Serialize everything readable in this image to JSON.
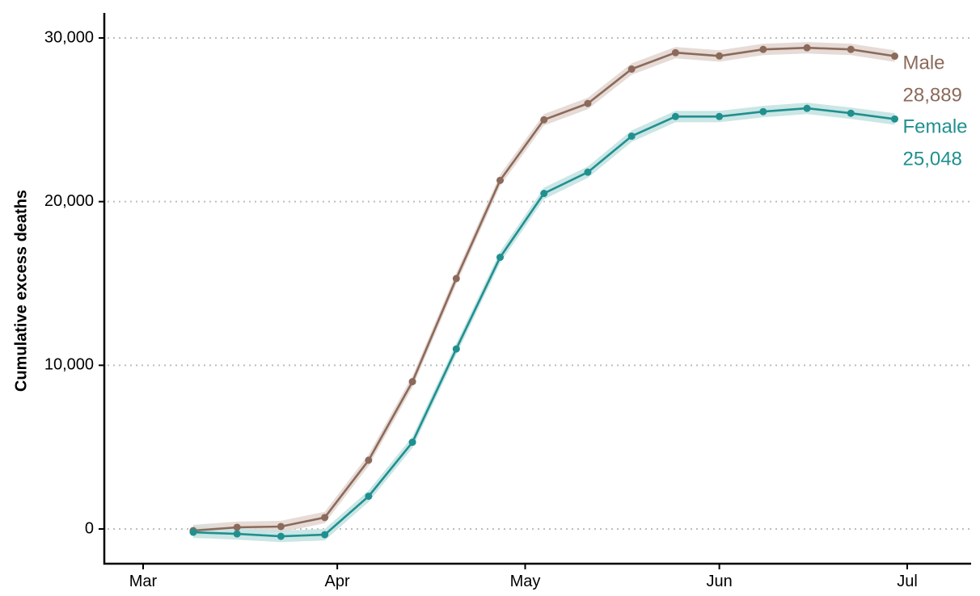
{
  "chart_data": {
    "type": "line",
    "title": "",
    "xlabel": "",
    "ylabel": "Cumulative excess deaths",
    "ylim": [
      -2000,
      31000
    ],
    "xlim": [
      "2020-02-24",
      "2020-07-14"
    ],
    "x_ticks": [
      {
        "date": "2020-03-01",
        "label": "Mar"
      },
      {
        "date": "2020-04-01",
        "label": "Apr"
      },
      {
        "date": "2020-05-01",
        "label": "May"
      },
      {
        "date": "2020-06-01",
        "label": "Jun"
      },
      {
        "date": "2020-07-01",
        "label": "Jul"
      }
    ],
    "y_ticks": [
      {
        "value": 0,
        "label": "0"
      },
      {
        "value": 10000,
        "label": "10,000"
      },
      {
        "value": 20000,
        "label": "20,000"
      },
      {
        "value": 30000,
        "label": "30,000"
      }
    ],
    "grid": "horizontal dotted",
    "shaded_band": true,
    "x": [
      "2020-03-09",
      "2020-03-16",
      "2020-03-23",
      "2020-03-30",
      "2020-04-06",
      "2020-04-13",
      "2020-04-20",
      "2020-04-27",
      "2020-05-04",
      "2020-05-11",
      "2020-05-18",
      "2020-05-25",
      "2020-06-01",
      "2020-06-08",
      "2020-06-15",
      "2020-06-22",
      "2020-06-29"
    ],
    "series": [
      {
        "name": "Male",
        "end_label": "28,889",
        "color": "#8c6a5b",
        "band_color": "#e3d7d1",
        "values": [
          -100,
          100,
          150,
          700,
          4200,
          9000,
          15300,
          21300,
          25000,
          26000,
          28100,
          29100,
          28900,
          29300,
          29400,
          29300,
          28889
        ],
        "band": 350
      },
      {
        "name": "Female",
        "end_label": "25,048",
        "color": "#20908f",
        "band_color": "#c4e3e2",
        "values": [
          -200,
          -300,
          -450,
          -350,
          2000,
          5300,
          11000,
          16600,
          20500,
          21800,
          24000,
          25200,
          25200,
          25500,
          25700,
          25400,
          25048
        ],
        "band": 350
      }
    ]
  }
}
